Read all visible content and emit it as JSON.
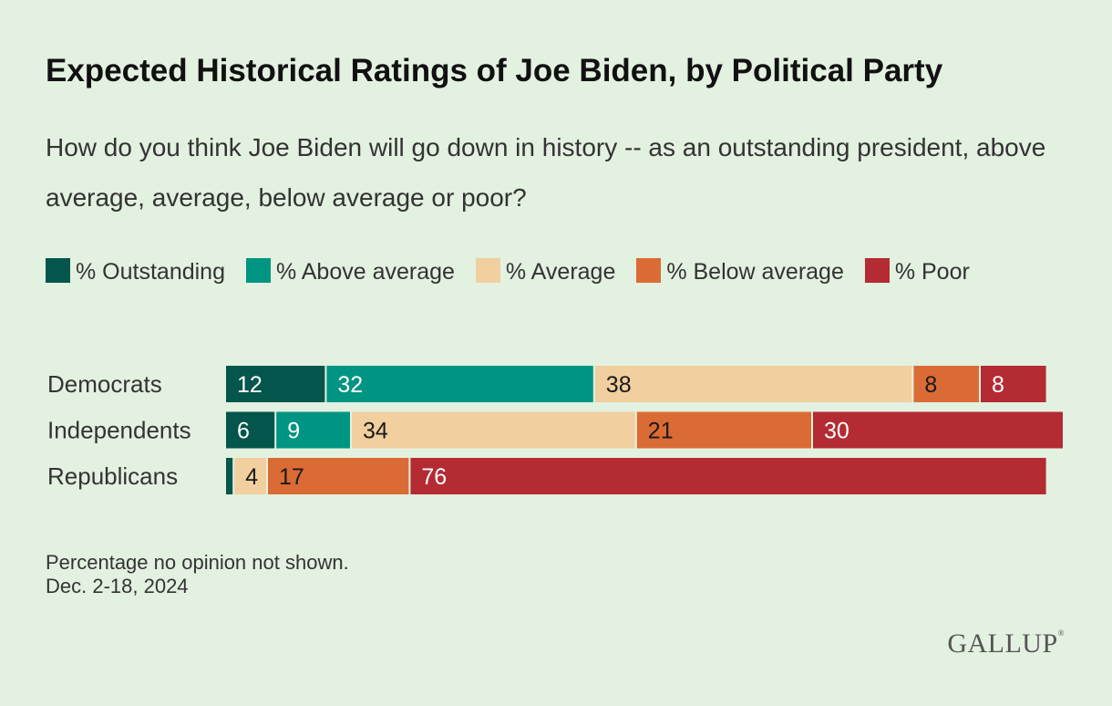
{
  "chart_data": {
    "type": "bar",
    "orientation": "horizontal",
    "stacked": true,
    "title": "Expected Historical Ratings of Joe Biden, by Political Party",
    "subtitle": "How do you think Joe Biden will go down in history -- as an outstanding president, above average, average, below average or poor?",
    "categories": [
      "Democrats",
      "Independents",
      "Republicans"
    ],
    "series": [
      {
        "name": "% Outstanding",
        "color": "#04564c",
        "values": [
          12,
          6,
          1
        ],
        "labels": [
          "12",
          "6",
          ""
        ],
        "label_color": "#ffffff"
      },
      {
        "name": "% Above average",
        "color": "#009582",
        "values": [
          32,
          9,
          0
        ],
        "labels": [
          "32",
          "9",
          ""
        ],
        "label_color": "#ffffff"
      },
      {
        "name": "% Average",
        "color": "#f2cf9f",
        "values": [
          38,
          34,
          4
        ],
        "labels": [
          "38",
          "34",
          "4"
        ],
        "label_color": "#1a1a1a"
      },
      {
        "name": "% Below average",
        "color": "#db6b34",
        "values": [
          8,
          21,
          17
        ],
        "labels": [
          "8",
          "21",
          "17"
        ],
        "label_color": "#1a1a1a"
      },
      {
        "name": "% Poor",
        "color": "#b42b33",
        "values": [
          8,
          30,
          76
        ],
        "labels": [
          "8",
          "30",
          "76"
        ],
        "label_color": "#ffffff"
      }
    ],
    "xlim": [
      0,
      100
    ],
    "legend": "top-left",
    "grid": false
  },
  "footnote": {
    "line1": "Percentage no opinion not shown.",
    "line2": "Dec. 2-18, 2024"
  },
  "brand": {
    "name": "GALLUP",
    "mark": "®"
  }
}
